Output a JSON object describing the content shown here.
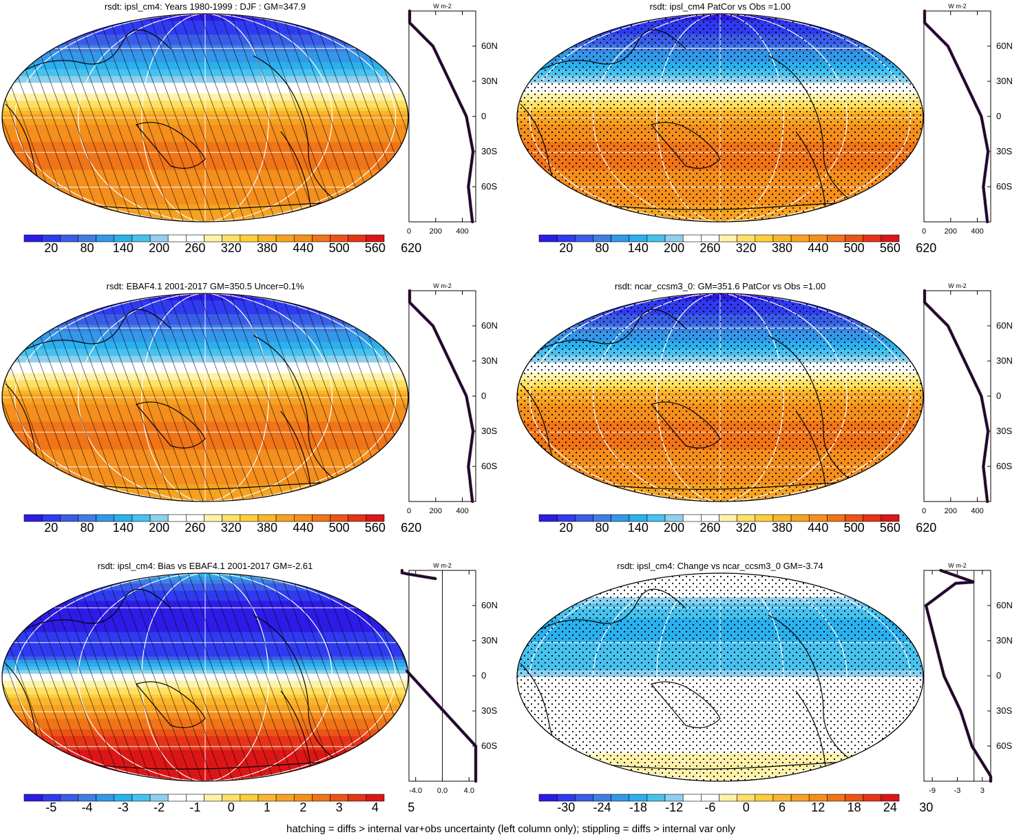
{
  "footer": "hatching = diffs > internal var+obs uncertainty (left column only); stippling = diffs > internal var only",
  "chart_data": [
    {
      "type": "heatmap",
      "title": "rsdt: ipsl_cm4: Years 1980-1999 : DJF : GM=347.9",
      "kind": "abs",
      "overlay": "hatch",
      "colorbar": {
        "ticks": [
          "20",
          "80",
          "140",
          "200",
          "260",
          "320",
          "380",
          "440",
          "500",
          "560",
          "620"
        ]
      },
      "zonal": {
        "units": "W m-2",
        "xlim": [
          0,
          500
        ],
        "xticks": [
          "0",
          "200",
          "400"
        ],
        "ylabels": [
          "60N",
          "30N",
          "0",
          "30S",
          "60S"
        ]
      }
    },
    {
      "type": "heatmap",
      "title": "rsdt: ipsl_cm4 PatCor vs Obs =1.00",
      "kind": "abs",
      "overlay": "stipple",
      "colorbar": {
        "ticks": [
          "20",
          "80",
          "140",
          "200",
          "260",
          "320",
          "380",
          "440",
          "500",
          "560",
          "620"
        ]
      },
      "zonal": {
        "units": "W m-2",
        "xlim": [
          0,
          500
        ],
        "xticks": [
          "0",
          "200",
          "400"
        ],
        "ylabels": [
          "60N",
          "30N",
          "0",
          "30S",
          "60S"
        ]
      }
    },
    {
      "type": "heatmap",
      "title": "rsdt: EBAF4.1 2001-2017 GM=350.5 Uncer=0.1%",
      "kind": "abs",
      "overlay": "hatch",
      "colorbar": {
        "ticks": [
          "20",
          "80",
          "140",
          "200",
          "260",
          "320",
          "380",
          "440",
          "500",
          "560",
          "620"
        ]
      },
      "zonal": {
        "units": "W m-2",
        "xlim": [
          0,
          500
        ],
        "xticks": [
          "0",
          "200",
          "400"
        ],
        "ylabels": [
          "60N",
          "30N",
          "0",
          "30S",
          "60S"
        ]
      }
    },
    {
      "type": "heatmap",
      "title": "rsdt: ncar_ccsm3_0: GM=351.6 PatCor vs Obs =1.00",
      "kind": "abs",
      "overlay": "stipple",
      "colorbar": {
        "ticks": [
          "20",
          "80",
          "140",
          "200",
          "260",
          "320",
          "380",
          "440",
          "500",
          "560",
          "620"
        ]
      },
      "zonal": {
        "units": "W m-2",
        "xlim": [
          0,
          500
        ],
        "xticks": [
          "0",
          "200",
          "400"
        ],
        "ylabels": [
          "60N",
          "30N",
          "0",
          "30S",
          "60S"
        ]
      }
    },
    {
      "type": "heatmap",
      "title": "rsdt: ipsl_cm4: Bias vs EBAF4.1 2001-2017 GM=-2.61",
      "kind": "bias",
      "overlay": "hatch",
      "colorbar": {
        "ticks": [
          "-5",
          "-4",
          "-3",
          "-2",
          "-1",
          "0",
          "1",
          "2",
          "3",
          "4",
          "5"
        ]
      },
      "zonal": {
        "units": "W m-2",
        "xlim": [
          -5,
          5
        ],
        "xticks": [
          "-4.0",
          "0.0",
          "4.0"
        ],
        "ylabels": [
          "60N",
          "30N",
          "0",
          "30S",
          "60S"
        ]
      }
    },
    {
      "type": "heatmap",
      "title": "rsdt: ipsl_cm4: Change vs ncar_ccsm3_0 GM=-3.74",
      "kind": "change",
      "overlay": "stipple",
      "colorbar": {
        "ticks": [
          "-30",
          "-24",
          "-18",
          "-12",
          "-6",
          "0",
          "6",
          "12",
          "18",
          "24",
          "30"
        ]
      },
      "zonal": {
        "units": "W m-2",
        "xlim": [
          -11,
          5
        ],
        "xticks": [
          "-9",
          "-3",
          "3"
        ],
        "ylabels": [
          "60N",
          "30N",
          "0",
          "30S",
          "60S"
        ]
      }
    }
  ],
  "palette": [
    "#2d1be6",
    "#2f3bf0",
    "#3a5de8",
    "#3f7ee5",
    "#3398e8",
    "#2bb0ee",
    "#48c1ee",
    "#8ed0ee",
    "#ffffff",
    "#ffffff",
    "#fff2a8",
    "#ffe066",
    "#fdcd3c",
    "#f9b62c",
    "#f6a221",
    "#f48e1c",
    "#f07418",
    "#ec5417",
    "#e63417",
    "#dc1616"
  ]
}
